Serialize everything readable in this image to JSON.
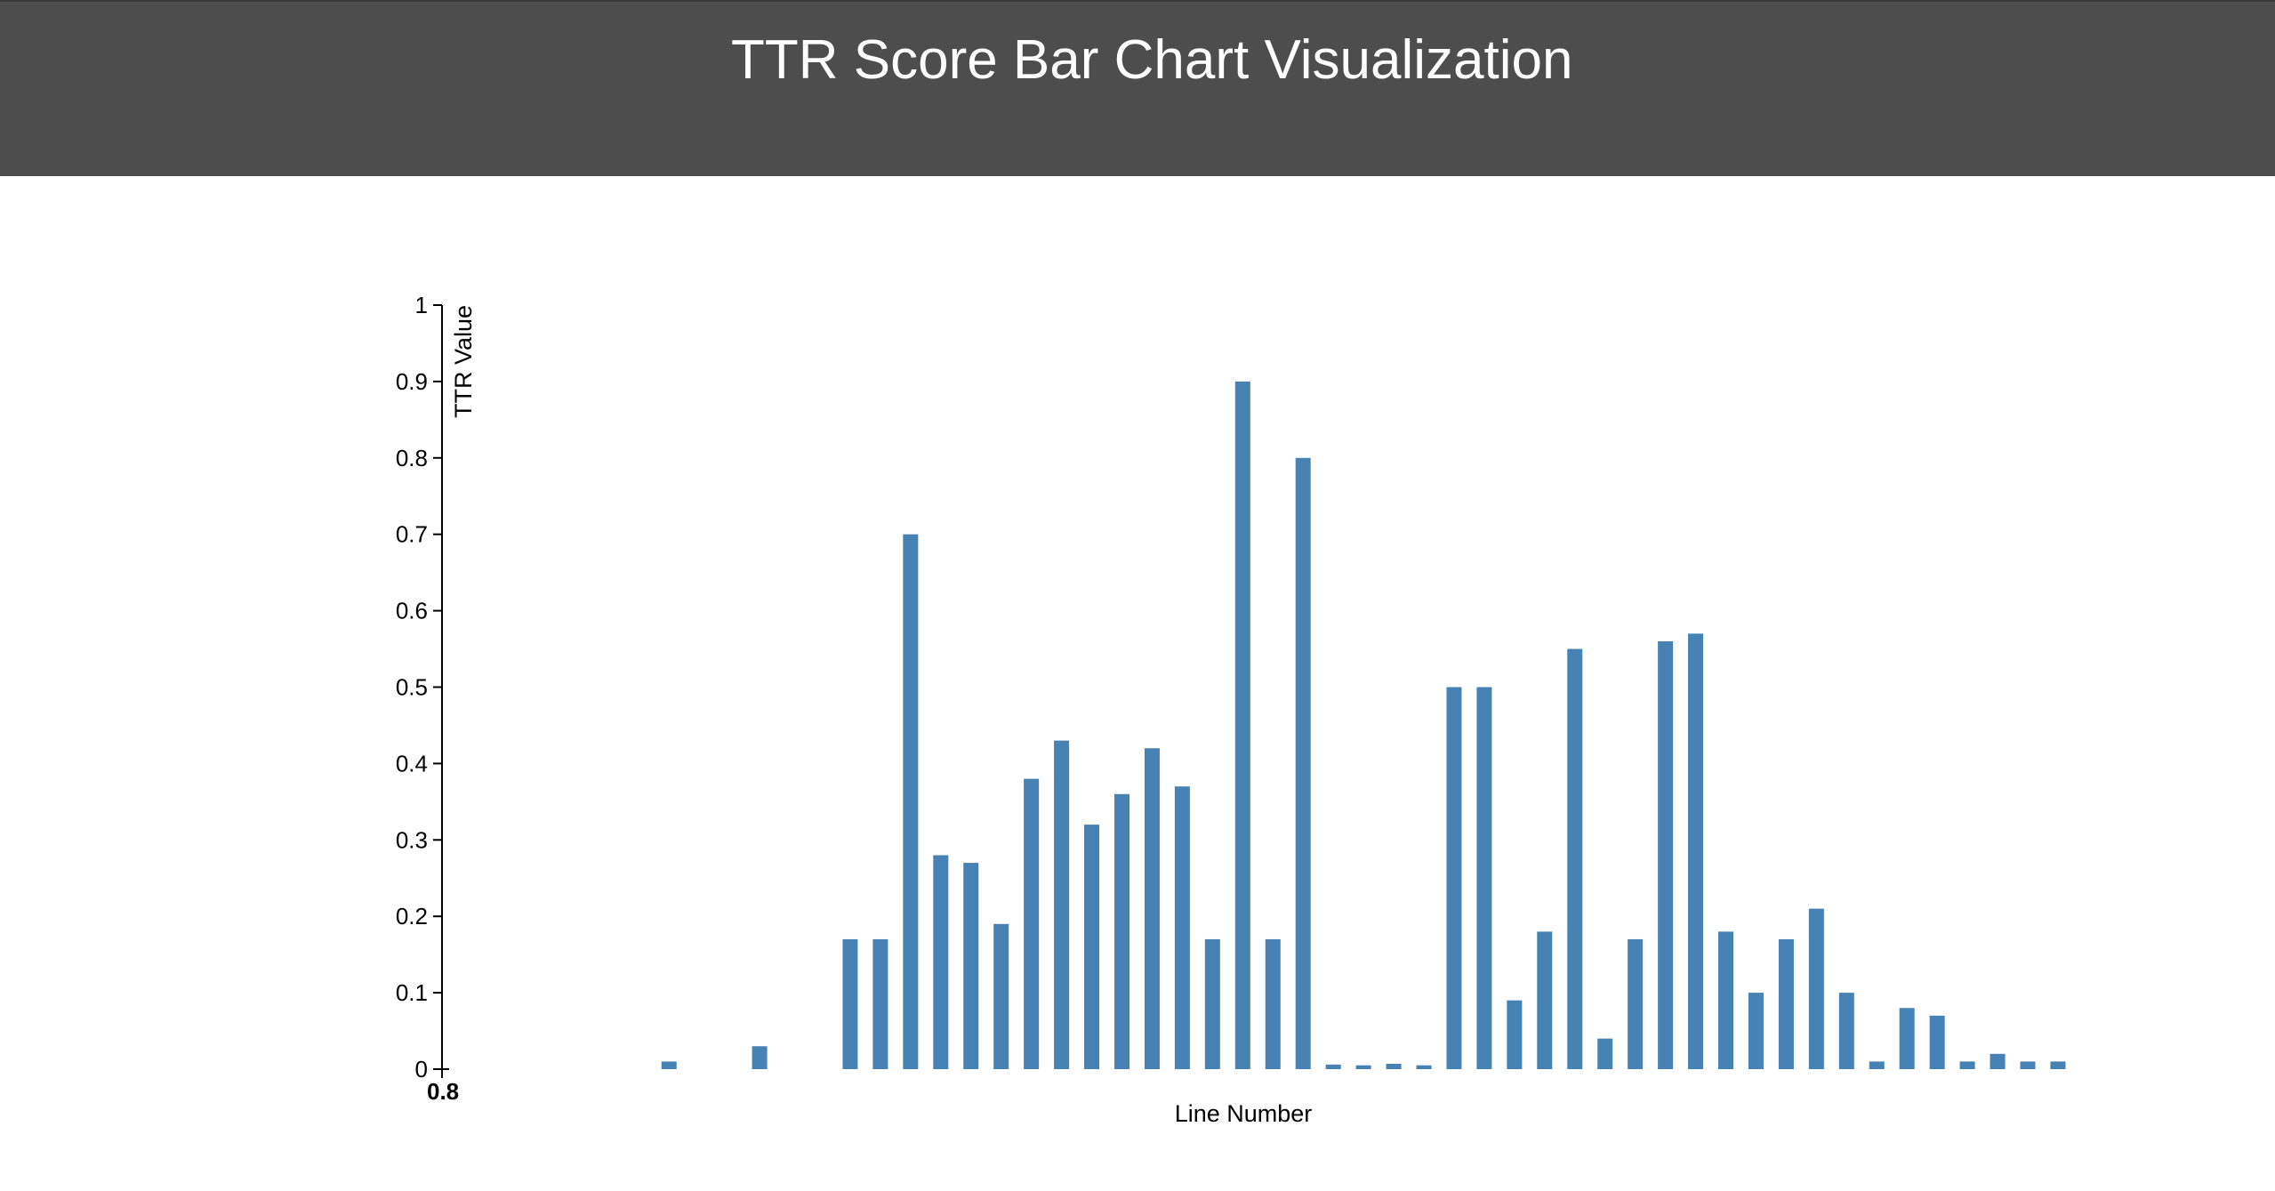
{
  "header": {
    "title": "TTR Score Bar Chart Visualization"
  },
  "colors": {
    "header_bg": "#4d4d4d",
    "bar": "#4682b4",
    "axis": "#000000"
  },
  "chart_data": {
    "type": "bar",
    "title": "",
    "xlabel": "Line Number",
    "ylabel": "TTR Value",
    "ylim": [
      0,
      1
    ],
    "yticks": [
      0,
      0.1,
      0.2,
      0.3,
      0.4,
      0.5,
      0.6,
      0.7,
      0.8,
      0.9,
      1
    ],
    "ytick_labels": [
      "0",
      "0.1",
      "0.2",
      "0.3",
      "0.4",
      "0.5",
      "0.6",
      "0.7",
      "0.8",
      "0.9",
      "1"
    ],
    "xtick_label": "0.8",
    "grid": false,
    "values": [
      0,
      0,
      0,
      0,
      0,
      0.01,
      0,
      0,
      0.03,
      0,
      0,
      0.17,
      0.17,
      0.7,
      0.28,
      0.27,
      0.19,
      0.38,
      0.43,
      0.32,
      0.36,
      0.42,
      0.37,
      0.17,
      0.9,
      0.17,
      0.8,
      0.006,
      0.005,
      0.007,
      0.005,
      0.5,
      0.5,
      0.09,
      0.18,
      0.55,
      0.04,
      0.17,
      0.56,
      0.57,
      0.18,
      0.1,
      0.17,
      0.21,
      0.1,
      0.01,
      0.08,
      0.07,
      0.01,
      0.02,
      0.01,
      0.01
    ]
  }
}
